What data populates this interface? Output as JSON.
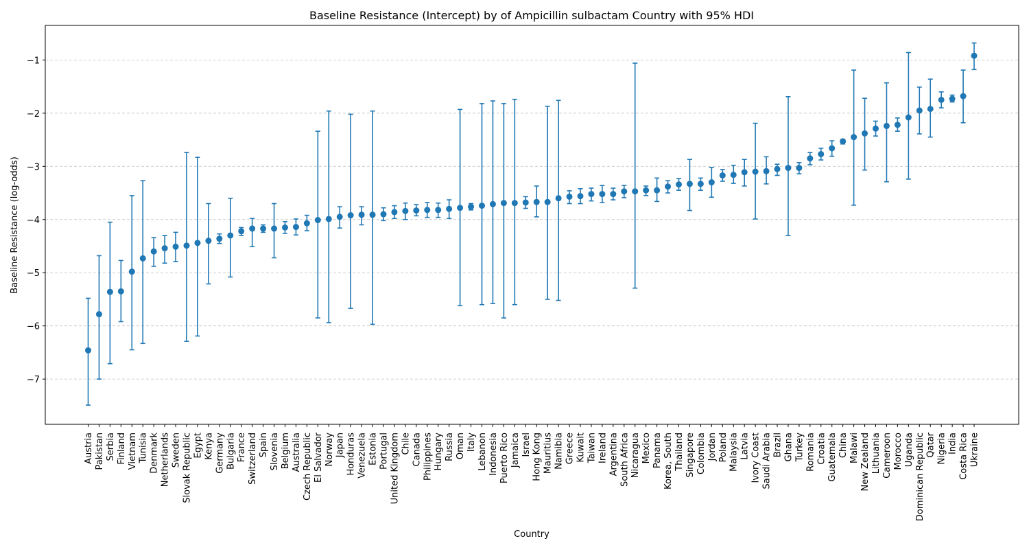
{
  "chart_data": {
    "type": "scatter",
    "title": "Baseline Resistance (Intercept) by of Ampicillin sulbactam Country with 95% HDI",
    "xlabel": "Country",
    "ylabel": "Baseline Resistance (log-odds)",
    "ylim": [
      -7.85,
      -0.35
    ],
    "yticks": [
      -7,
      -6,
      -5,
      -4,
      -3,
      -2,
      -1
    ],
    "grid": "horizontal dashed",
    "marker_color": "#1f77b4",
    "points": [
      {
        "country": "Austria",
        "mean": -6.46,
        "lo": -7.49,
        "hi": -5.48
      },
      {
        "country": "Pakistan",
        "mean": -5.78,
        "lo": -7.0,
        "hi": -4.68
      },
      {
        "country": "Serbia",
        "mean": -5.36,
        "lo": -6.71,
        "hi": -4.05
      },
      {
        "country": "Finland",
        "mean": -5.35,
        "lo": -5.92,
        "hi": -4.77
      },
      {
        "country": "Vietnam",
        "mean": -4.98,
        "lo": -6.45,
        "hi": -3.55
      },
      {
        "country": "Tunisia",
        "mean": -4.73,
        "lo": -6.33,
        "hi": -3.27
      },
      {
        "country": "Denmark",
        "mean": -4.6,
        "lo": -4.88,
        "hi": -4.34
      },
      {
        "country": "Netherlands",
        "mean": -4.54,
        "lo": -4.82,
        "hi": -4.3
      },
      {
        "country": "Sweden",
        "mean": -4.51,
        "lo": -4.79,
        "hi": -4.24
      },
      {
        "country": "Slovak Republic",
        "mean": -4.49,
        "lo": -6.29,
        "hi": -2.74
      },
      {
        "country": "Egypt",
        "mean": -4.44,
        "lo": -6.19,
        "hi": -2.83
      },
      {
        "country": "Kenya",
        "mean": -4.4,
        "lo": -5.21,
        "hi": -3.7
      },
      {
        "country": "Germany",
        "mean": -4.36,
        "lo": -4.45,
        "hi": -4.27
      },
      {
        "country": "Bulgaria",
        "mean": -4.3,
        "lo": -5.08,
        "hi": -3.6
      },
      {
        "country": "France",
        "mean": -4.22,
        "lo": -4.3,
        "hi": -4.15
      },
      {
        "country": "Switzerland",
        "mean": -4.17,
        "lo": -4.51,
        "hi": -3.98
      },
      {
        "country": "Spain",
        "mean": -4.17,
        "lo": -4.24,
        "hi": -4.1
      },
      {
        "country": "Slovenia",
        "mean": -4.17,
        "lo": -4.72,
        "hi": -3.7
      },
      {
        "country": "Belgium",
        "mean": -4.15,
        "lo": -4.26,
        "hi": -4.04
      },
      {
        "country": "Australia",
        "mean": -4.14,
        "lo": -4.29,
        "hi": -3.99
      },
      {
        "country": "Czech Republic",
        "mean": -4.07,
        "lo": -4.21,
        "hi": -3.92
      },
      {
        "country": "El Salvador",
        "mean": -4.01,
        "lo": -5.85,
        "hi": -2.34
      },
      {
        "country": "Norway",
        "mean": -3.99,
        "lo": -5.94,
        "hi": -1.96
      },
      {
        "country": "Japan",
        "mean": -3.95,
        "lo": -4.16,
        "hi": -3.76
      },
      {
        "country": "Honduras",
        "mean": -3.92,
        "lo": -5.67,
        "hi": -2.02
      },
      {
        "country": "Venezuela",
        "mean": -3.91,
        "lo": -4.1,
        "hi": -3.76
      },
      {
        "country": "Estonia",
        "mean": -3.91,
        "lo": -5.97,
        "hi": -1.96
      },
      {
        "country": "Portugal",
        "mean": -3.9,
        "lo": -4.02,
        "hi": -3.78
      },
      {
        "country": "United Kingdom",
        "mean": -3.86,
        "lo": -3.98,
        "hi": -3.74
      },
      {
        "country": "Chile",
        "mean": -3.84,
        "lo": -4.0,
        "hi": -3.69
      },
      {
        "country": "Canada",
        "mean": -3.83,
        "lo": -3.93,
        "hi": -3.72
      },
      {
        "country": "Philippines",
        "mean": -3.82,
        "lo": -3.96,
        "hi": -3.68
      },
      {
        "country": "Hungary",
        "mean": -3.82,
        "lo": -3.96,
        "hi": -3.69
      },
      {
        "country": "Russia",
        "mean": -3.8,
        "lo": -3.98,
        "hi": -3.63
      },
      {
        "country": "Oman",
        "mean": -3.78,
        "lo": -5.62,
        "hi": -1.93
      },
      {
        "country": "Italy",
        "mean": -3.76,
        "lo": -3.82,
        "hi": -3.7
      },
      {
        "country": "Lebanon",
        "mean": -3.74,
        "lo": -5.6,
        "hi": -1.82
      },
      {
        "country": "Indonesia",
        "mean": -3.71,
        "lo": -5.58,
        "hi": -1.77
      },
      {
        "country": "Puerto Rico",
        "mean": -3.69,
        "lo": -5.85,
        "hi": -1.82
      },
      {
        "country": "Jamaica",
        "mean": -3.69,
        "lo": -5.6,
        "hi": -1.74
      },
      {
        "country": "Israel",
        "mean": -3.68,
        "lo": -3.79,
        "hi": -3.57
      },
      {
        "country": "Hong Kong",
        "mean": -3.67,
        "lo": -3.95,
        "hi": -3.37
      },
      {
        "country": "Mauritius",
        "mean": -3.67,
        "lo": -5.5,
        "hi": -1.87
      },
      {
        "country": "Namibia",
        "mean": -3.6,
        "lo": -5.52,
        "hi": -1.76
      },
      {
        "country": "Greece",
        "mean": -3.57,
        "lo": -3.7,
        "hi": -3.46
      },
      {
        "country": "Kuwait",
        "mean": -3.56,
        "lo": -3.7,
        "hi": -3.42
      },
      {
        "country": "Taiwan",
        "mean": -3.52,
        "lo": -3.65,
        "hi": -3.41
      },
      {
        "country": "Ireland",
        "mean": -3.52,
        "lo": -3.68,
        "hi": -3.36
      },
      {
        "country": "Argentina",
        "mean": -3.52,
        "lo": -3.63,
        "hi": -3.41
      },
      {
        "country": "South Africa",
        "mean": -3.47,
        "lo": -3.59,
        "hi": -3.36
      },
      {
        "country": "Nicaragua",
        "mean": -3.47,
        "lo": -5.29,
        "hi": -1.06
      },
      {
        "country": "Mexico",
        "mean": -3.45,
        "lo": -3.55,
        "hi": -3.37
      },
      {
        "country": "Panama",
        "mean": -3.45,
        "lo": -3.66,
        "hi": -3.22
      },
      {
        "country": "Korea, South",
        "mean": -3.38,
        "lo": -3.5,
        "hi": -3.27
      },
      {
        "country": "Thailand",
        "mean": -3.34,
        "lo": -3.45,
        "hi": -3.23
      },
      {
        "country": "Singapore",
        "mean": -3.33,
        "lo": -3.83,
        "hi": -2.87
      },
      {
        "country": "Colombia",
        "mean": -3.33,
        "lo": -3.45,
        "hi": -3.22
      },
      {
        "country": "Jordan",
        "mean": -3.3,
        "lo": -3.58,
        "hi": -3.02
      },
      {
        "country": "Poland",
        "mean": -3.17,
        "lo": -3.28,
        "hi": -3.06
      },
      {
        "country": "Malaysia",
        "mean": -3.16,
        "lo": -3.32,
        "hi": -2.98
      },
      {
        "country": "Latvia",
        "mean": -3.11,
        "lo": -3.37,
        "hi": -2.87
      },
      {
        "country": "Ivory Coast",
        "mean": -3.1,
        "lo": -3.99,
        "hi": -2.19
      },
      {
        "country": "Saudi Arabia",
        "mean": -3.09,
        "lo": -3.33,
        "hi": -2.82
      },
      {
        "country": "Brazil",
        "mean": -3.05,
        "lo": -3.17,
        "hi": -2.96
      },
      {
        "country": "Ghana",
        "mean": -3.03,
        "lo": -4.3,
        "hi": -1.69
      },
      {
        "country": "Turkey",
        "mean": -3.03,
        "lo": -3.14,
        "hi": -2.93
      },
      {
        "country": "Romania",
        "mean": -2.85,
        "lo": -2.97,
        "hi": -2.74
      },
      {
        "country": "Croatia",
        "mean": -2.77,
        "lo": -2.88,
        "hi": -2.66
      },
      {
        "country": "Guatemala",
        "mean": -2.66,
        "lo": -2.81,
        "hi": -2.52
      },
      {
        "country": "China",
        "mean": -2.53,
        "lo": -2.58,
        "hi": -2.49
      },
      {
        "country": "Malawi",
        "mean": -2.45,
        "lo": -3.73,
        "hi": -1.19
      },
      {
        "country": "New Zealand",
        "mean": -2.38,
        "lo": -3.07,
        "hi": -1.72
      },
      {
        "country": "Lithuania",
        "mean": -2.29,
        "lo": -2.43,
        "hi": -2.15
      },
      {
        "country": "Cameroon",
        "mean": -2.24,
        "lo": -3.29,
        "hi": -1.43
      },
      {
        "country": "Morocco",
        "mean": -2.22,
        "lo": -2.34,
        "hi": -2.09
      },
      {
        "country": "Uganda",
        "mean": -2.08,
        "lo": -3.24,
        "hi": -0.86
      },
      {
        "country": "Dominican Republic",
        "mean": -1.95,
        "lo": -2.39,
        "hi": -1.51
      },
      {
        "country": "Qatar",
        "mean": -1.92,
        "lo": -2.45,
        "hi": -1.36
      },
      {
        "country": "Nigeria",
        "mean": -1.75,
        "lo": -1.9,
        "hi": -1.6
      },
      {
        "country": "India",
        "mean": -1.73,
        "lo": -1.79,
        "hi": -1.66
      },
      {
        "country": "Costa Rica",
        "mean": -1.68,
        "lo": -2.18,
        "hi": -1.19
      },
      {
        "country": "Ukraine",
        "mean": -0.92,
        "lo": -1.18,
        "hi": -0.68
      }
    ]
  }
}
